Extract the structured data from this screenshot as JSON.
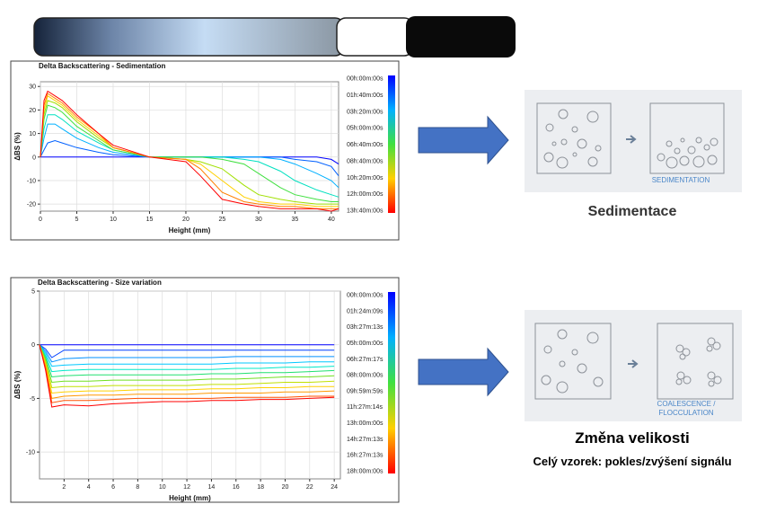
{
  "chart_data": [
    {
      "type": "line",
      "title": "Delta Backscattering - Sedimentation",
      "x_label": "Height (mm)",
      "y_label": "ΔBS (%)",
      "xlim": [
        0,
        41
      ],
      "ylim": [
        -23,
        32
      ],
      "xticks": [
        0,
        5,
        10,
        15,
        20,
        25,
        30,
        35,
        40
      ],
      "yticks": [
        -20,
        -10,
        0,
        10,
        20,
        30
      ],
      "grid": true,
      "x": [
        0,
        0.5,
        1,
        2,
        3,
        5,
        8,
        10,
        15,
        20,
        22,
        25,
        28,
        30,
        33,
        35,
        38,
        40,
        41
      ],
      "series": [
        {
          "name": "00h:00m:00s",
          "color": "#0000ff",
          "values": [
            0,
            0,
            0,
            0,
            0,
            0,
            0,
            0,
            0,
            0,
            0,
            0,
            0,
            0,
            0,
            0,
            0,
            -1,
            -3
          ]
        },
        {
          "name": "01h:40m:00s",
          "color": "#0060ff",
          "values": [
            0,
            3,
            6,
            7,
            6,
            4,
            2,
            1,
            0,
            0,
            0,
            0,
            0,
            0,
            0,
            -1,
            -2,
            -4,
            -8
          ]
        },
        {
          "name": "03h:20m:00s",
          "color": "#00b0ff",
          "values": [
            0,
            8,
            14,
            14,
            12,
            8,
            4,
            2,
            0,
            0,
            0,
            0,
            0,
            0,
            -1,
            -3,
            -7,
            -10,
            -13
          ]
        },
        {
          "name": "05h:00m:00s",
          "color": "#00e0c0",
          "values": [
            0,
            12,
            18,
            18,
            16,
            11,
            6,
            3,
            0,
            0,
            0,
            0,
            -1,
            -2,
            -6,
            -10,
            -14,
            -16,
            -17
          ]
        },
        {
          "name": "06h:40m:00s",
          "color": "#40e040",
          "values": [
            0,
            16,
            22,
            21,
            19,
            13,
            7,
            3,
            0,
            0,
            0,
            -1,
            -3,
            -7,
            -13,
            -16,
            -18,
            -19,
            -19
          ]
        },
        {
          "name": "08h:40m:00s",
          "color": "#a0e000",
          "values": [
            0,
            18,
            24,
            23,
            21,
            15,
            8,
            4,
            0,
            -1,
            -2,
            -5,
            -12,
            -16,
            -18,
            -19,
            -20,
            -20,
            -20
          ]
        },
        {
          "name": "10h:20m:00s",
          "color": "#ffd000",
          "values": [
            0,
            20,
            26,
            24,
            22,
            16,
            9,
            4,
            0,
            -1,
            -3,
            -10,
            -17,
            -19,
            -20,
            -20,
            -21,
            -21,
            -21
          ]
        },
        {
          "name": "12h:00m:00s",
          "color": "#ff8000",
          "values": [
            0,
            22,
            27,
            25,
            23,
            17,
            10,
            4,
            0,
            -1,
            -5,
            -15,
            -19,
            -20,
            -21,
            -21,
            -22,
            -22,
            -22
          ]
        },
        {
          "name": "13h:40m:00s",
          "color": "#ff0000",
          "values": [
            0,
            24,
            28,
            26,
            24,
            18,
            10,
            5,
            0,
            -2,
            -8,
            -18,
            -20,
            -21,
            -22,
            -22,
            -22,
            -23,
            -22
          ]
        }
      ]
    },
    {
      "type": "line",
      "title": "Delta Backscattering - Size variation",
      "x_label": "Height (mm)",
      "y_label": "ΔBS (%)",
      "xlim": [
        0,
        24.5
      ],
      "ylim": [
        -12.5,
        5
      ],
      "xticks": [
        2,
        4,
        6,
        8,
        10,
        12,
        14,
        16,
        18,
        20,
        22,
        24
      ],
      "yticks": [
        -10,
        -5,
        0,
        5
      ],
      "grid": true,
      "x": [
        0,
        0.5,
        1,
        2,
        4,
        6,
        8,
        10,
        12,
        14,
        16,
        18,
        20,
        22,
        24
      ],
      "series": [
        {
          "name": "00h:00m:00s",
          "color": "#0000ff",
          "values": [
            0,
            0,
            0,
            0,
            0,
            0,
            0,
            0,
            0,
            0,
            0,
            0,
            0,
            0,
            0
          ]
        },
        {
          "name": "01h:24m:09s",
          "color": "#0040ff",
          "values": [
            0,
            -0.4,
            -1.2,
            -0.5,
            -0.5,
            -0.5,
            -0.5,
            -0.5,
            -0.5,
            -0.5,
            -0.5,
            -0.5,
            -0.5,
            -0.5,
            -0.5
          ]
        },
        {
          "name": "03h:27m:13s",
          "color": "#0090ff",
          "values": [
            0,
            -0.6,
            -1.6,
            -1.3,
            -1.2,
            -1.2,
            -1.2,
            -1.2,
            -1.2,
            -1.2,
            -1.1,
            -1.1,
            -1.1,
            -1.1,
            -1.1
          ]
        },
        {
          "name": "05h:00m:00s",
          "color": "#00c8ff",
          "values": [
            0,
            -0.8,
            -2,
            -1.9,
            -1.8,
            -1.8,
            -1.8,
            -1.8,
            -1.8,
            -1.8,
            -1.7,
            -1.7,
            -1.7,
            -1.6,
            -1.6
          ]
        },
        {
          "name": "06h:27m:17s",
          "color": "#00e8c8",
          "values": [
            0,
            -1,
            -2.5,
            -2.4,
            -2.3,
            -2.3,
            -2.3,
            -2.3,
            -2.3,
            -2.3,
            -2.2,
            -2.2,
            -2.1,
            -2.1,
            -2
          ]
        },
        {
          "name": "08h:00m:00s",
          "color": "#20e070",
          "values": [
            0,
            -1.2,
            -3,
            -2.9,
            -2.8,
            -2.8,
            -2.8,
            -2.8,
            -2.8,
            -2.7,
            -2.7,
            -2.6,
            -2.6,
            -2.5,
            -2.4
          ]
        },
        {
          "name": "09h:59m:59s",
          "color": "#70e020",
          "values": [
            0,
            -1.4,
            -3.5,
            -3.4,
            -3.4,
            -3.3,
            -3.3,
            -3.3,
            -3.3,
            -3.2,
            -3.2,
            -3.1,
            -3,
            -3,
            -2.9
          ]
        },
        {
          "name": "11h:27m:14s",
          "color": "#c0e000",
          "values": [
            0,
            -1.6,
            -4,
            -3.9,
            -3.9,
            -3.8,
            -3.8,
            -3.8,
            -3.8,
            -3.7,
            -3.7,
            -3.6,
            -3.5,
            -3.5,
            -3.4
          ]
        },
        {
          "name": "13h:00m:00s",
          "color": "#ffd000",
          "values": [
            0,
            -1.8,
            -4.5,
            -4.4,
            -4.3,
            -4.3,
            -4.2,
            -4.2,
            -4.2,
            -4.1,
            -4.1,
            -4,
            -4,
            -3.9,
            -3.9
          ]
        },
        {
          "name": "14h:27m:13s",
          "color": "#ff9800",
          "values": [
            0,
            -2,
            -5,
            -4.8,
            -4.7,
            -4.7,
            -4.6,
            -4.6,
            -4.6,
            -4.5,
            -4.5,
            -4.5,
            -4.4,
            -4.4,
            -4.3
          ]
        },
        {
          "name": "16h:27m:13s",
          "color": "#ff5000",
          "values": [
            0,
            -2.2,
            -5.4,
            -5.2,
            -5.2,
            -5.1,
            -5,
            -5,
            -5,
            -5,
            -4.9,
            -4.9,
            -4.9,
            -4.8,
            -4.8
          ]
        },
        {
          "name": "18h:00m:00s",
          "color": "#ff0000",
          "values": [
            0,
            -2.4,
            -5.8,
            -5.6,
            -5.7,
            -5.5,
            -5.4,
            -5.3,
            -5.3,
            -5.2,
            -5.2,
            -5.1,
            -5.1,
            -5,
            -4.9
          ]
        }
      ]
    }
  ],
  "panels": [
    {
      "caption_lines": [
        "SEDIMENTATION"
      ],
      "heading": "Sedimentace"
    },
    {
      "caption_lines": [
        "COALESCENCE /",
        "FLOCCULATION"
      ],
      "heading": "Změna velikosti",
      "subheading": "Celý vzorek: pokles/zvýšení signálu"
    }
  ]
}
